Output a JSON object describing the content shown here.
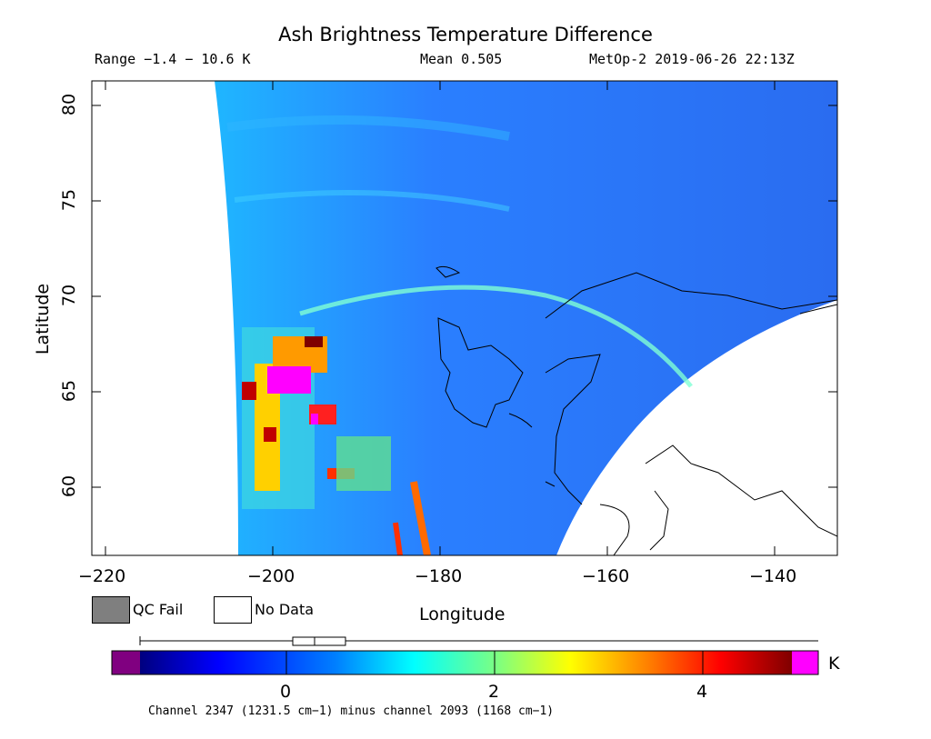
{
  "title": "Ash Brightness Temperature Difference",
  "range_text": "Range −1.4 − 10.6 K",
  "mean_text": "Mean 0.505",
  "satellite_time": "MetOp-2 2019-06-26 22:13Z",
  "x_axis": {
    "label": "Longitude",
    "ticks": [
      "−220",
      "−200",
      "−180",
      "−160",
      "−140"
    ],
    "tick_values": [
      -220,
      -200,
      -180,
      -160,
      -140
    ]
  },
  "y_axis": {
    "label": "Latitude",
    "ticks": [
      "60",
      "65",
      "70",
      "75",
      "80"
    ],
    "tick_values": [
      60,
      65,
      70,
      75,
      80
    ]
  },
  "legend": {
    "qc_fail": "QC Fail",
    "no_data": "No Data",
    "qc_fail_color": "#7f7f7f",
    "no_data_color": "#ffffff"
  },
  "colorbar": {
    "ticks": [
      "0",
      "2",
      "4"
    ],
    "tick_values": [
      0,
      2,
      4
    ],
    "unit": "K",
    "under_color": "#800080",
    "over_color": "#ff00ff",
    "colors": [
      "#00007f",
      "#0000ff",
      "#007fff",
      "#00ffff",
      "#7fff7f",
      "#ffff00",
      "#ff7f00",
      "#ff0000",
      "#7f0000"
    ]
  },
  "footer": "Channel 2347 (1231.5 cm−1) minus channel 2093 (1168 cm−1)"
}
